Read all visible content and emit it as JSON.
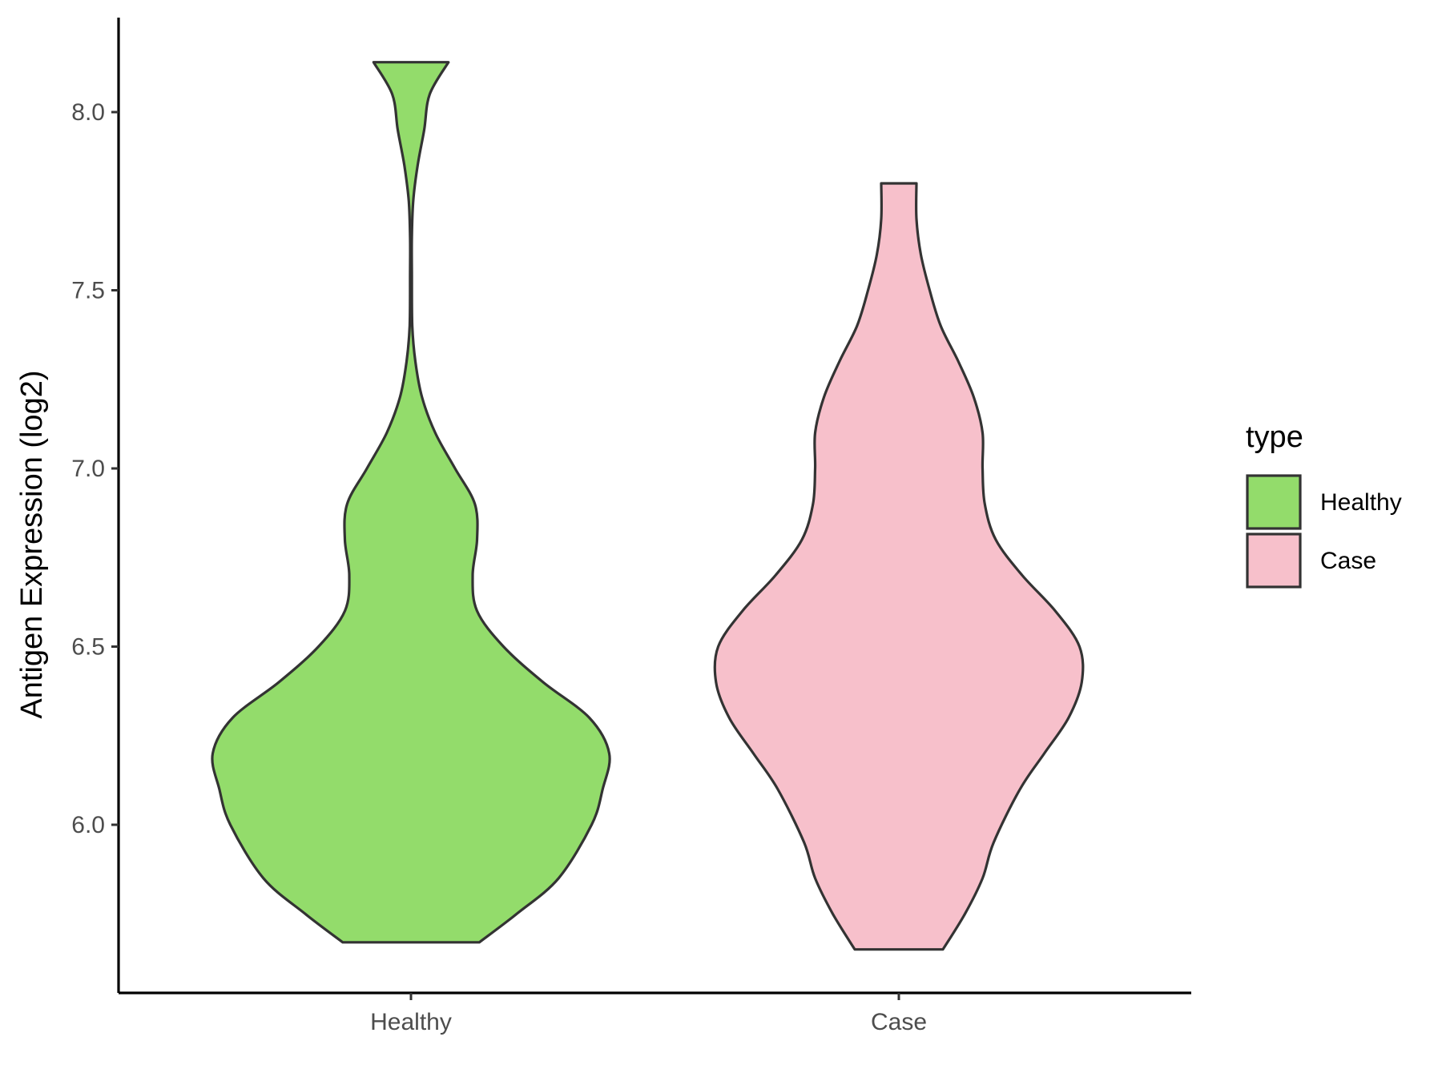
{
  "chart_data": {
    "type": "violin",
    "title": "",
    "xlabel": "",
    "ylabel": "Antigen Expression (log2)",
    "ylim": [
      5.5,
      8.25
    ],
    "yticks": [
      6.0,
      6.5,
      7.0,
      7.5,
      8.0
    ],
    "ytick_labels": [
      "6.0",
      "6.5",
      "7.0",
      "7.5",
      "8.0"
    ],
    "categories": [
      "Healthy",
      "Case"
    ],
    "grid": false,
    "legend": {
      "title": "type",
      "position": "right",
      "entries": [
        {
          "label": "Healthy",
          "color": "#93DC6B"
        },
        {
          "label": "Case",
          "color": "#F7C0CB"
        }
      ]
    },
    "series": [
      {
        "name": "Healthy",
        "color": "#93DC6B",
        "min": 5.67,
        "max": 8.14,
        "density": [
          [
            5.67,
            0.31
          ],
          [
            5.75,
            0.48
          ],
          [
            5.85,
            0.67
          ],
          [
            6.0,
            0.82
          ],
          [
            6.1,
            0.87
          ],
          [
            6.2,
            0.9
          ],
          [
            6.3,
            0.81
          ],
          [
            6.4,
            0.6
          ],
          [
            6.5,
            0.42
          ],
          [
            6.6,
            0.3
          ],
          [
            6.7,
            0.28
          ],
          [
            6.8,
            0.3
          ],
          [
            6.9,
            0.29
          ],
          [
            7.0,
            0.2
          ],
          [
            7.1,
            0.11
          ],
          [
            7.2,
            0.05
          ],
          [
            7.3,
            0.02
          ],
          [
            7.4,
            0.006
          ],
          [
            7.55,
            0.004
          ],
          [
            7.65,
            0.004
          ],
          [
            7.75,
            0.01
          ],
          [
            7.85,
            0.03
          ],
          [
            7.95,
            0.06
          ],
          [
            8.05,
            0.085
          ],
          [
            8.14,
            0.17
          ]
        ]
      },
      {
        "name": "Case",
        "color": "#F7C0CB",
        "min": 5.65,
        "max": 7.8,
        "density": [
          [
            5.65,
            0.2
          ],
          [
            5.75,
            0.3
          ],
          [
            5.85,
            0.38
          ],
          [
            5.95,
            0.43
          ],
          [
            6.1,
            0.55
          ],
          [
            6.2,
            0.66
          ],
          [
            6.3,
            0.77
          ],
          [
            6.4,
            0.83
          ],
          [
            6.5,
            0.82
          ],
          [
            6.6,
            0.71
          ],
          [
            6.7,
            0.56
          ],
          [
            6.8,
            0.44
          ],
          [
            6.9,
            0.39
          ],
          [
            7.0,
            0.38
          ],
          [
            7.1,
            0.38
          ],
          [
            7.2,
            0.34
          ],
          [
            7.3,
            0.27
          ],
          [
            7.4,
            0.19
          ],
          [
            7.5,
            0.14
          ],
          [
            7.6,
            0.1
          ],
          [
            7.7,
            0.08
          ],
          [
            7.8,
            0.08
          ]
        ]
      }
    ]
  }
}
